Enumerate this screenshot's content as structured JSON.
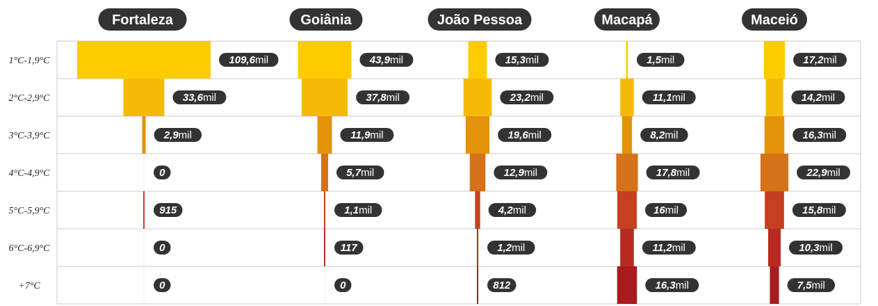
{
  "chart_data": {
    "type": "bar",
    "title": "",
    "xlabel": "",
    "ylabel": "",
    "categories": [
      "1°C-1,9°C",
      "2°C-2,9°C",
      "3°C-3,9°C",
      "4°C-4,9°C",
      "5°C-5,9°C",
      "6°C-6,9°C",
      "+7°C"
    ],
    "series": [
      {
        "name": "Fortaleza",
        "values": [
          109600,
          33600,
          2900,
          0,
          915,
          0,
          0
        ],
        "labels": [
          [
            "109,6",
            "mil"
          ],
          [
            "33,6",
            "mil"
          ],
          [
            "2,9",
            "mil"
          ],
          [
            "0",
            ""
          ],
          [
            "915",
            ""
          ],
          [
            "0",
            ""
          ],
          [
            "0",
            ""
          ]
        ]
      },
      {
        "name": "Goiânia",
        "values": [
          43900,
          37800,
          11900,
          5700,
          1100,
          117,
          0
        ],
        "labels": [
          [
            "43,9",
            "mil"
          ],
          [
            "37,8",
            "mil"
          ],
          [
            "11,9",
            "mil"
          ],
          [
            "5,7",
            "mil"
          ],
          [
            "1,1",
            "mil"
          ],
          [
            "117",
            ""
          ],
          [
            "0",
            ""
          ]
        ]
      },
      {
        "name": "João Pessoa",
        "values": [
          15300,
          23200,
          19600,
          12900,
          4200,
          1200,
          812
        ],
        "labels": [
          [
            "15,3",
            "mil"
          ],
          [
            "23,2",
            "mil"
          ],
          [
            "19,6",
            "mil"
          ],
          [
            "12,9",
            "mil"
          ],
          [
            "4,2",
            "mil"
          ],
          [
            "1,2",
            "mil"
          ],
          [
            "812",
            ""
          ]
        ]
      },
      {
        "name": "Macapá",
        "values": [
          1500,
          11100,
          8200,
          17800,
          16000,
          11200,
          16300
        ],
        "labels": [
          [
            "1,5",
            "mil"
          ],
          [
            "11,1",
            "mil"
          ],
          [
            "8,2",
            "mil"
          ],
          [
            "17,8",
            "mil"
          ],
          [
            "16",
            "mil"
          ],
          [
            "11,2",
            "mil"
          ],
          [
            "16,3",
            "mil"
          ]
        ]
      },
      {
        "name": "Maceió",
        "values": [
          17200,
          14200,
          16300,
          22900,
          15800,
          10300,
          7500
        ],
        "labels": [
          [
            "17,2",
            "mil"
          ],
          [
            "14,2",
            "mil"
          ],
          [
            "16,3",
            "mil"
          ],
          [
            "22,9",
            "mil"
          ],
          [
            "15,8",
            "mil"
          ],
          [
            "10,3",
            "mil"
          ],
          [
            "7,5",
            "mil"
          ]
        ]
      }
    ],
    "row_colors": [
      "#fecb00",
      "#f6ba06",
      "#e3940a",
      "#d6721a",
      "#c63f20",
      "#b82a20",
      "#a81c1e"
    ],
    "label_color": "#333333",
    "grid": true,
    "legend": "none"
  }
}
